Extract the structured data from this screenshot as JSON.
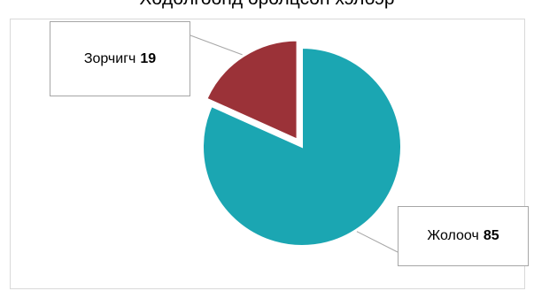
{
  "chart_data": {
    "type": "pie",
    "title": "Хөдөлгөөнд оролцсон хэлбэр",
    "categories": [
      "Жолооч",
      "Зорчигч"
    ],
    "values": [
      85,
      19
    ],
    "colors": [
      "#1ba6b2",
      "#9b3238"
    ],
    "exploded": [
      false,
      true
    ],
    "legend": "none",
    "data_labels": "callouts"
  }
}
